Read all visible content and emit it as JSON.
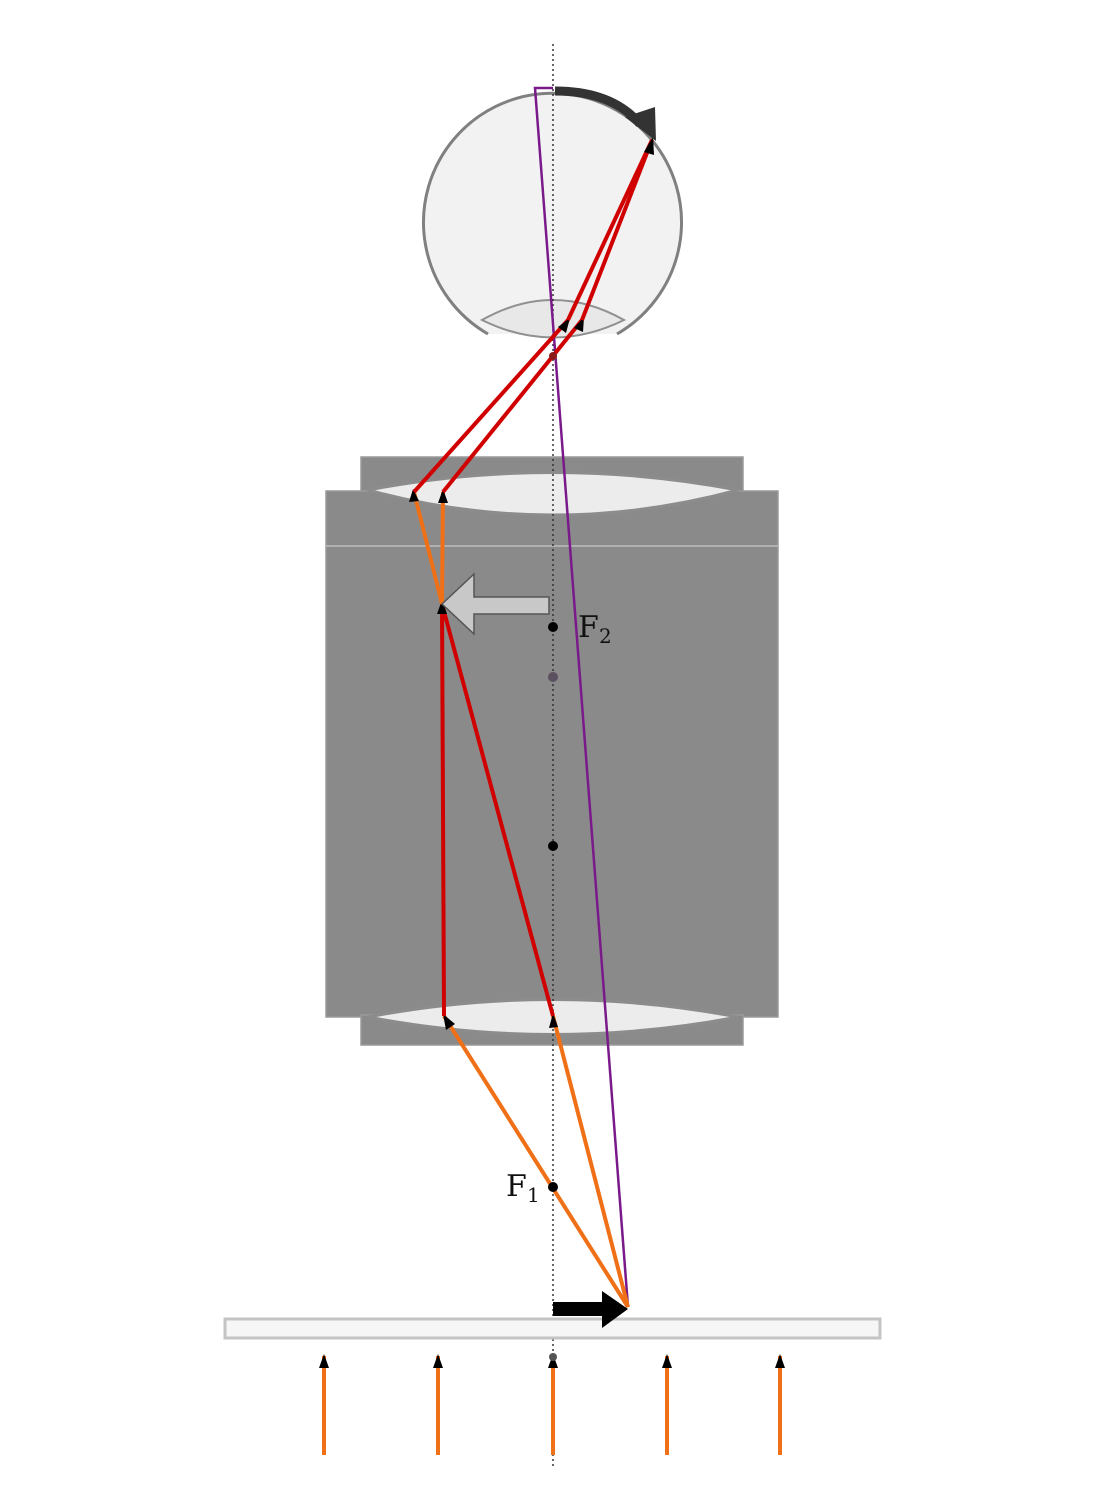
{
  "diagram": {
    "labels": {
      "focal_point_1": "F",
      "focal_point_1_sub": "1",
      "focal_point_2": "F",
      "focal_point_2_sub": "2"
    },
    "colors": {
      "background": "#ffffff",
      "tube": "#8a8a8a",
      "lens_fill": "#ececec",
      "eye_fill": "#f2f2f2",
      "eye_outline": "#808080",
      "incoming_light": "#f07018",
      "ray_inside": "#d00000",
      "chief_ray": "#7a1a8a",
      "object_arrow": "#000000",
      "rotation_arrow": "#333333",
      "image_arrow": "#c8c8c8"
    },
    "element_names": [
      "optical-axis",
      "specimen-slide",
      "object-arrow",
      "objective-lens",
      "eyepiece-lens",
      "microscope-tube",
      "intermediate-image-arrow",
      "eye",
      "retina-image-arrow",
      "focal-point-f1",
      "focal-point-f2"
    ]
  }
}
